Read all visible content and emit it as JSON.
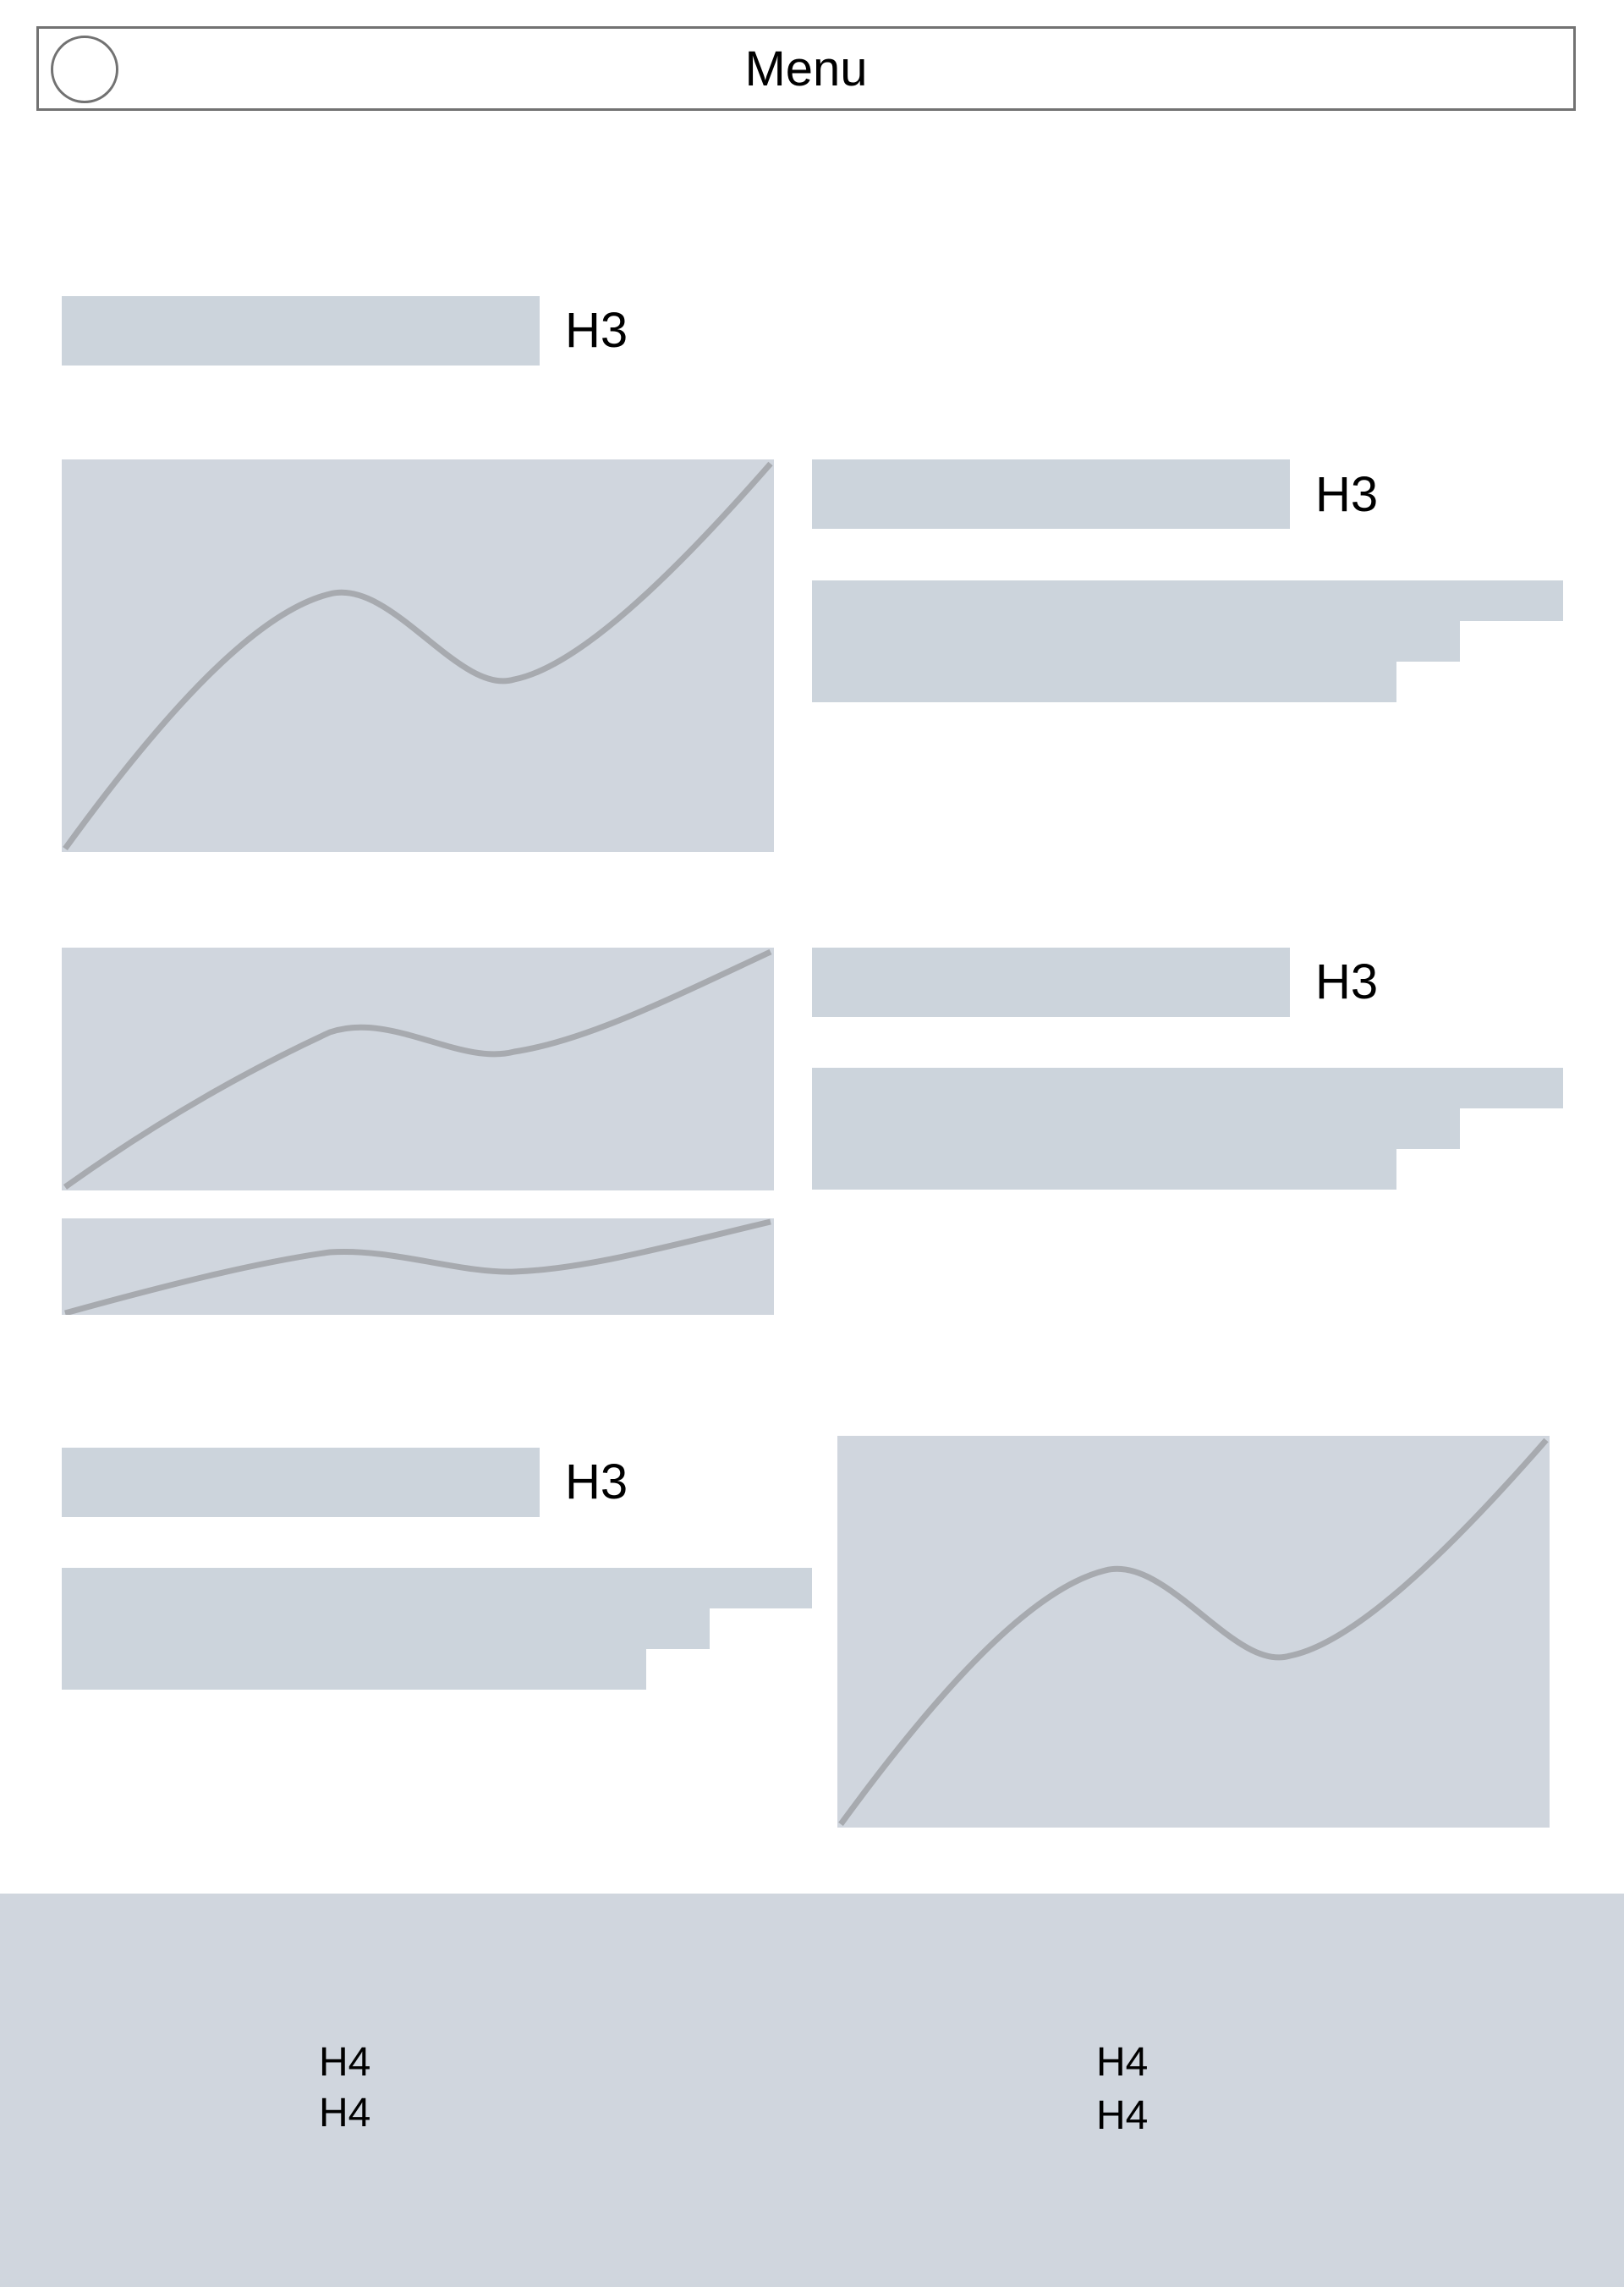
{
  "header": {
    "menu_label": "Menu",
    "logo_icon": "circle-icon"
  },
  "sections": {
    "s1": {
      "heading": "H3"
    },
    "s2": {
      "heading": "H3"
    },
    "s3": {
      "heading": "H3"
    },
    "s4": {
      "heading": "H3"
    }
  },
  "footer": {
    "col1": [
      "H4",
      "H4"
    ],
    "col2": [
      "H4",
      "H4"
    ]
  },
  "colors": {
    "placeholder": "#ccd4dc",
    "image": "#d0d6de",
    "line": "#a7aaaf",
    "border": "#727272"
  }
}
